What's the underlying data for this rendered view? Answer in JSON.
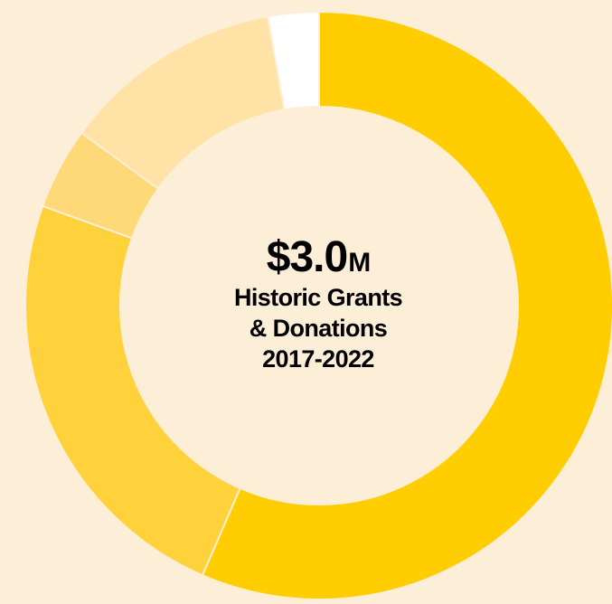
{
  "chart_data": {
    "type": "donut",
    "title": "",
    "center": {
      "value": "$3.0",
      "unit": "M",
      "line1": "Historic Grants",
      "line2": "& Donations",
      "line3": "2017-2022"
    },
    "slices": [
      {
        "value": 56.5,
        "color": "#FFCD00"
      },
      {
        "value": 24.0,
        "color": "#FFD23C"
      },
      {
        "value": 4.5,
        "color": "#FFD878"
      },
      {
        "value": 12.2,
        "color": "#FFE3A6"
      },
      {
        "value": 2.8,
        "color": "#FFFFFF"
      }
    ]
  },
  "colors": {
    "background": "#FDEED8",
    "separator": "#FDEED8"
  }
}
